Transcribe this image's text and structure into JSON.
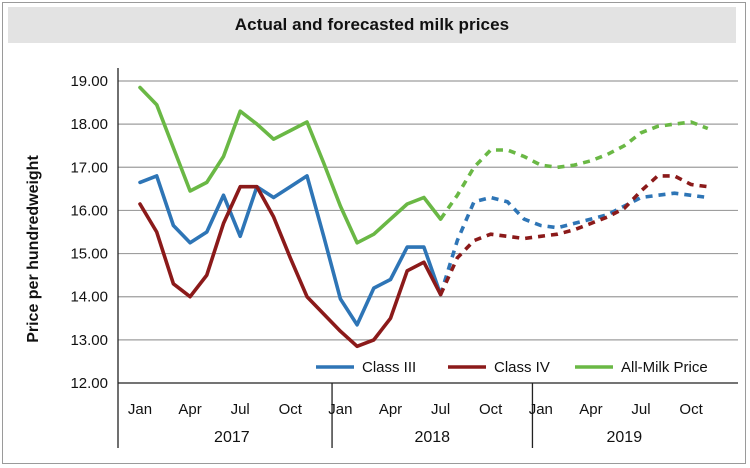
{
  "chart_data": {
    "type": "line",
    "title": "Actual and forecasted milk prices",
    "ylabel": "Price per hundredweight",
    "xlabel": "",
    "ylim": [
      12.0,
      19.0
    ],
    "yticks": [
      "12.00",
      "13.00",
      "14.00",
      "15.00",
      "16.00",
      "17.00",
      "18.00",
      "19.00"
    ],
    "grid": true,
    "legend_position": "bottom-right",
    "month_ticks": [
      {
        "label": "Jan",
        "month": 0
      },
      {
        "label": "Apr",
        "month": 3
      },
      {
        "label": "Jul",
        "month": 6
      },
      {
        "label": "Oct",
        "month": 9
      },
      {
        "label": "Jan",
        "month": 12
      },
      {
        "label": "Apr",
        "month": 15
      },
      {
        "label": "Jul",
        "month": 18
      },
      {
        "label": "Oct",
        "month": 21
      },
      {
        "label": "Jan",
        "month": 24
      },
      {
        "label": "Apr",
        "month": 27
      },
      {
        "label": "Jul",
        "month": 30
      },
      {
        "label": "Oct",
        "month": 33
      }
    ],
    "years": [
      {
        "label": "2017",
        "start": 0,
        "end": 12
      },
      {
        "label": "2018",
        "start": 12,
        "end": 24
      },
      {
        "label": "2019",
        "start": 24,
        "end": 35
      }
    ],
    "series": [
      {
        "name": "Class III",
        "color": "#2e75b6",
        "actual": [
          [
            0,
            16.65
          ],
          [
            1,
            16.8
          ],
          [
            2,
            15.65
          ],
          [
            3,
            15.25
          ],
          [
            4,
            15.5
          ],
          [
            5,
            16.35
          ],
          [
            6,
            15.4
          ],
          [
            7,
            16.55
          ],
          [
            8,
            16.3
          ],
          [
            9,
            16.55
          ],
          [
            10,
            16.8
          ],
          [
            11,
            15.4
          ],
          [
            12,
            13.95
          ],
          [
            13,
            13.35
          ],
          [
            14,
            14.2
          ],
          [
            15,
            14.4
          ],
          [
            16,
            15.15
          ],
          [
            17,
            15.15
          ],
          [
            18,
            14.05
          ]
        ],
        "forecast": [
          [
            18,
            14.05
          ],
          [
            19,
            15.3
          ],
          [
            20,
            16.2
          ],
          [
            21,
            16.3
          ],
          [
            22,
            16.2
          ],
          [
            23,
            15.8
          ],
          [
            24,
            15.65
          ],
          [
            25,
            15.6
          ],
          [
            26,
            15.7
          ],
          [
            27,
            15.8
          ],
          [
            28,
            15.9
          ],
          [
            29,
            16.1
          ],
          [
            30,
            16.3
          ],
          [
            31,
            16.35
          ],
          [
            32,
            16.4
          ],
          [
            33,
            16.35
          ],
          [
            34,
            16.3
          ]
        ]
      },
      {
        "name": "Class IV",
        "color": "#8b1a1a",
        "actual": [
          [
            0,
            16.15
          ],
          [
            1,
            15.5
          ],
          [
            2,
            14.3
          ],
          [
            3,
            14.0
          ],
          [
            4,
            14.5
          ],
          [
            5,
            15.7
          ],
          [
            6,
            16.55
          ],
          [
            7,
            16.55
          ],
          [
            8,
            15.85
          ],
          [
            9,
            14.9
          ],
          [
            10,
            14.0
          ],
          [
            11,
            13.6
          ],
          [
            12,
            13.2
          ],
          [
            13,
            12.85
          ],
          [
            14,
            13.0
          ],
          [
            15,
            13.5
          ],
          [
            16,
            14.6
          ],
          [
            17,
            14.8
          ],
          [
            18,
            14.05
          ]
        ],
        "forecast": [
          [
            18,
            14.05
          ],
          [
            19,
            14.9
          ],
          [
            20,
            15.3
          ],
          [
            21,
            15.45
          ],
          [
            22,
            15.4
          ],
          [
            23,
            15.35
          ],
          [
            24,
            15.4
          ],
          [
            25,
            15.45
          ],
          [
            26,
            15.55
          ],
          [
            27,
            15.7
          ],
          [
            28,
            15.85
          ],
          [
            29,
            16.05
          ],
          [
            30,
            16.45
          ],
          [
            31,
            16.8
          ],
          [
            32,
            16.8
          ],
          [
            33,
            16.6
          ],
          [
            34,
            16.55
          ]
        ]
      },
      {
        "name": "All-Milk Price",
        "color": "#6ab845",
        "actual": [
          [
            0,
            18.85
          ],
          [
            1,
            18.45
          ],
          [
            2,
            17.45
          ],
          [
            3,
            16.45
          ],
          [
            4,
            16.65
          ],
          [
            5,
            17.25
          ],
          [
            6,
            18.3
          ],
          [
            7,
            18.0
          ],
          [
            8,
            17.65
          ],
          [
            9,
            17.85
          ],
          [
            10,
            18.05
          ],
          [
            11,
            17.1
          ],
          [
            12,
            16.1
          ],
          [
            13,
            15.25
          ],
          [
            14,
            15.45
          ],
          [
            15,
            15.8
          ],
          [
            16,
            16.15
          ],
          [
            17,
            16.3
          ],
          [
            18,
            15.8
          ]
        ],
        "forecast": [
          [
            18,
            15.8
          ],
          [
            19,
            16.35
          ],
          [
            20,
            17.0
          ],
          [
            21,
            17.4
          ],
          [
            22,
            17.4
          ],
          [
            23,
            17.25
          ],
          [
            24,
            17.05
          ],
          [
            25,
            17.0
          ],
          [
            26,
            17.05
          ],
          [
            27,
            17.15
          ],
          [
            28,
            17.3
          ],
          [
            29,
            17.5
          ],
          [
            30,
            17.8
          ],
          [
            31,
            17.95
          ],
          [
            32,
            18.0
          ],
          [
            33,
            18.05
          ],
          [
            34,
            17.9
          ]
        ]
      }
    ]
  }
}
